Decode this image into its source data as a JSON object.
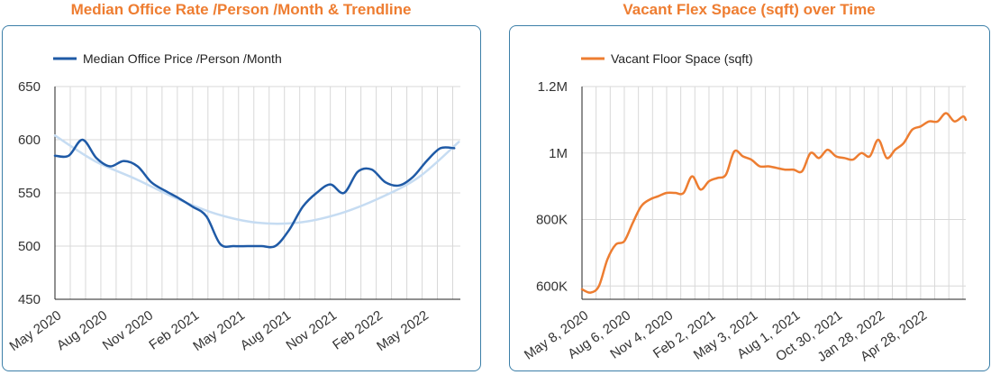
{
  "colors": {
    "title": "#ee7d31",
    "panel_border": "#3c7fa8",
    "line_blue": "#1f5aa6",
    "trend_blue": "#c6dcf2",
    "line_orange": "#ed7d31",
    "grid": "#d8d8d8"
  },
  "chart_data": [
    {
      "type": "line",
      "title": "Median Office Rate /Person /Month & Trendline",
      "legend_position": "top-left",
      "grid": true,
      "ylim": [
        450,
        650
      ],
      "yticks": [
        "650",
        "600",
        "550",
        "500",
        "450"
      ],
      "xlim": [
        0,
        26.5
      ],
      "xtick_labels": [
        {
          "label": "May 2020",
          "x": 0
        },
        {
          "label": "Aug 2020",
          "x": 3
        },
        {
          "label": "Nov 2020",
          "x": 6
        },
        {
          "label": "Feb 2021",
          "x": 9
        },
        {
          "label": "May 2021",
          "x": 12
        },
        {
          "label": "Aug 2021",
          "x": 15
        },
        {
          "label": "Nov 2021",
          "x": 18
        },
        {
          "label": "Feb 2022",
          "x": 21
        },
        {
          "label": "May 2022",
          "x": 24
        }
      ],
      "series": [
        {
          "name": "Median Office Price /Person /Month",
          "color": "#1f5aa6",
          "x": [
            0,
            0.9,
            1.8,
            2.7,
            3.6,
            4.5,
            5.4,
            6.3,
            7.2,
            8.1,
            9.0,
            9.9,
            10.8,
            11.7,
            12.6,
            13.5,
            14.4,
            15.3,
            16.2,
            17.1,
            18.0,
            18.9,
            19.8,
            20.7,
            21.6,
            22.5,
            23.4,
            24.3,
            25.2,
            26.1
          ],
          "y": [
            585,
            585,
            600,
            583,
            575,
            580,
            575,
            560,
            552,
            545,
            537,
            528,
            502,
            500,
            500,
            500,
            500,
            515,
            537,
            550,
            558,
            550,
            570,
            572,
            560,
            557,
            565,
            580,
            592,
            592
          ]
        },
        {
          "name": "",
          "role": "trendline",
          "color": "#c6dcf2",
          "x": [
            0,
            2.6,
            5.3,
            7.9,
            10.6,
            13.2,
            15.9,
            18.5,
            21.2,
            23.8,
            26.4
          ],
          "y": [
            604,
            580,
            563,
            545,
            530,
            522,
            522,
            530,
            545,
            565,
            598
          ]
        }
      ]
    },
    {
      "type": "line",
      "title": "Vacant Flex Space (sqft) over Time",
      "legend_position": "top-left",
      "grid": true,
      "ylim": [
        560000,
        1200000
      ],
      "yticks": [
        "1.2M",
        "1M",
        "800K",
        "600K"
      ],
      "xlim": [
        0,
        816
      ],
      "xtick_labels": [
        {
          "label": "May 8, 2020",
          "x": 0
        },
        {
          "label": "Aug 6, 2020",
          "x": 90
        },
        {
          "label": "Nov 4, 2020",
          "x": 180
        },
        {
          "label": "Feb 2, 2021",
          "x": 270
        },
        {
          "label": "May 3, 2021",
          "x": 360
        },
        {
          "label": "Aug 1, 2021",
          "x": 450
        },
        {
          "label": "Oct 30, 2021",
          "x": 540
        },
        {
          "label": "Jan 28, 2022",
          "x": 630
        },
        {
          "label": "Apr 28, 2022",
          "x": 720
        }
      ],
      "series": [
        {
          "name": "Vacant Floor Space (sqft)",
          "color": "#ed7d31",
          "x": [
            0,
            18,
            36,
            54,
            72,
            90,
            108,
            126,
            144,
            162,
            180,
            198,
            216,
            234,
            252,
            270,
            288,
            306,
            324,
            342,
            360,
            378,
            396,
            414,
            432,
            450,
            468,
            486,
            504,
            522,
            540,
            558,
            576,
            594,
            612,
            630,
            648,
            666,
            684,
            702,
            720,
            738,
            756,
            774,
            792,
            810,
            816
          ],
          "y": [
            590000,
            580000,
            600000,
            680000,
            725000,
            735000,
            790000,
            840000,
            860000,
            870000,
            880000,
            880000,
            880000,
            930000,
            890000,
            915000,
            925000,
            935000,
            1005000,
            990000,
            980000,
            960000,
            960000,
            955000,
            950000,
            950000,
            945000,
            1000000,
            985000,
            1010000,
            990000,
            985000,
            980000,
            1000000,
            990000,
            1040000,
            985000,
            1010000,
            1030000,
            1070000,
            1080000,
            1095000,
            1095000,
            1120000,
            1095000,
            1110000,
            1100000
          ]
        }
      ]
    }
  ]
}
